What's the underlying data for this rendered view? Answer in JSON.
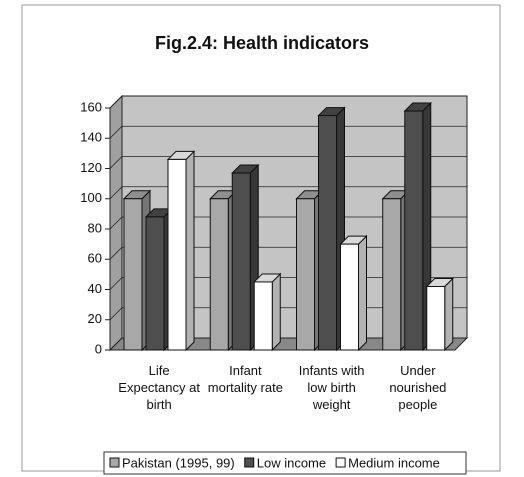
{
  "chart_data": {
    "type": "bar3d",
    "title": "Fig.2.4: Health indicators",
    "categories": [
      "Life Expectancy at birth",
      "Infant mortality rate",
      "Infants with low birth weight",
      "Under nourished people"
    ],
    "series": [
      {
        "name": "Pakistan (1995, 99)",
        "color": "#a8a8a8",
        "values": [
          100,
          100,
          100,
          100
        ]
      },
      {
        "name": "Low income",
        "color": "#4e4e4e",
        "values": [
          88,
          117,
          155,
          158
        ]
      },
      {
        "name": "Medium income",
        "color": "#ffffff",
        "values": [
          126,
          45,
          70,
          42
        ]
      }
    ],
    "ylim": [
      0,
      160
    ],
    "yticks": [
      0,
      20,
      40,
      60,
      80,
      100,
      120,
      140,
      160
    ],
    "grid": true,
    "legend": "bottom"
  }
}
